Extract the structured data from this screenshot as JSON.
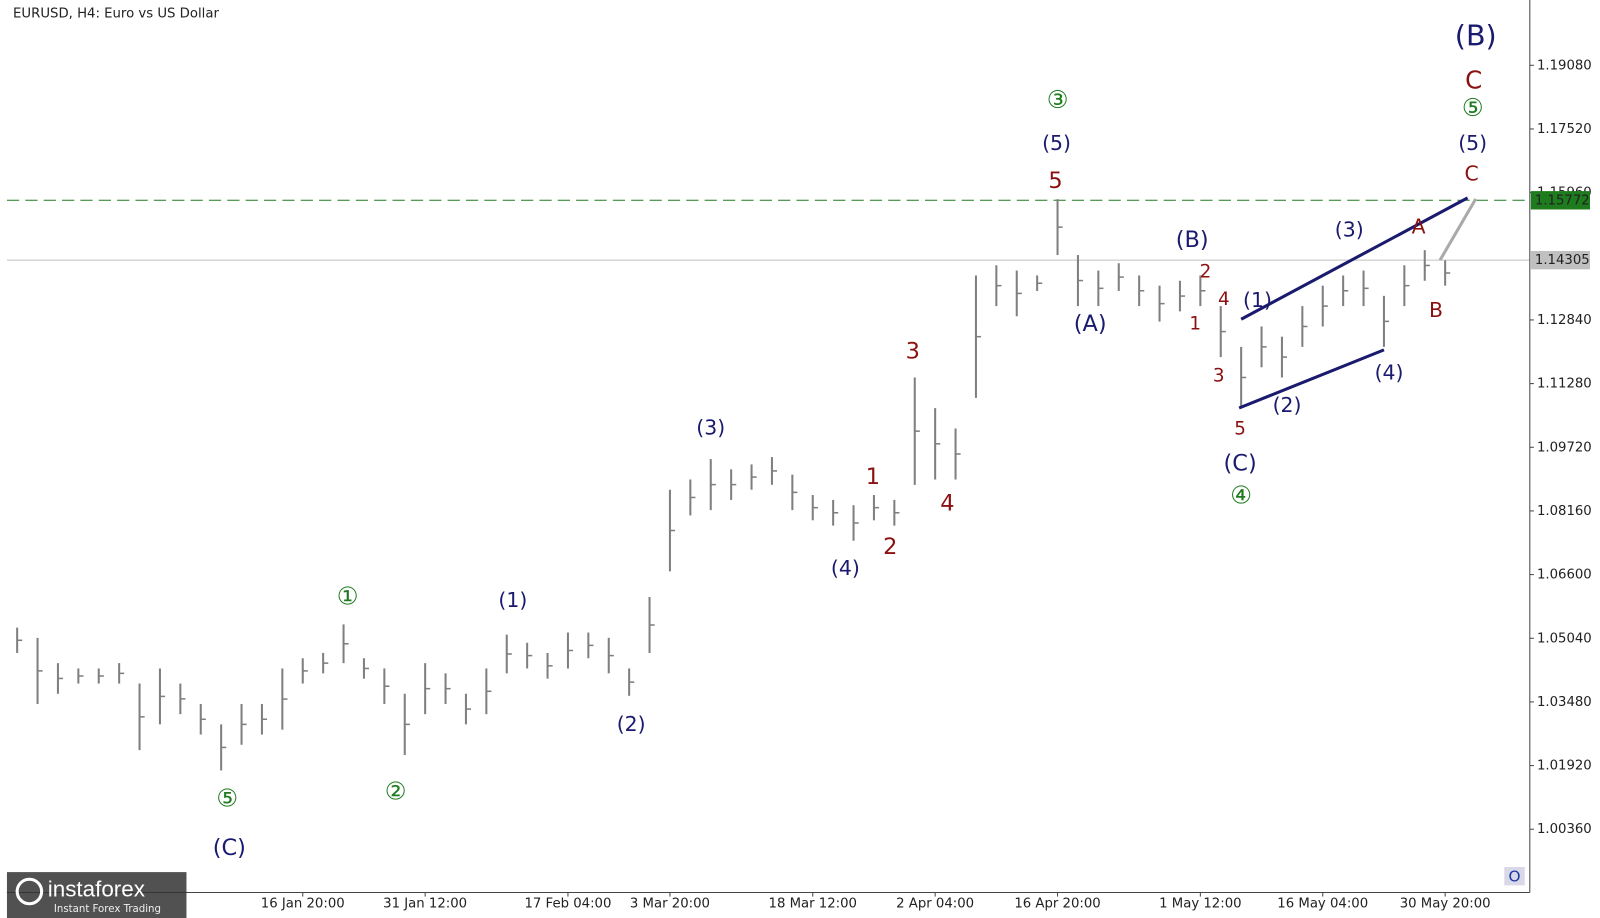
{
  "chart_data": {
    "type": "ohlc",
    "title": "EURUSD, H4:  Euro vs US Dollar",
    "color": "#7f7f7f",
    "categories": [
      null,
      null,
      null,
      null,
      null,
      null,
      null,
      null,
      null,
      null,
      null,
      null,
      null,
      null,
      "16 Jan 20:00",
      null,
      null,
      null,
      null,
      null,
      "31 Jan 12:00",
      null,
      null,
      null,
      null,
      null,
      null,
      "17 Feb 04:00",
      null,
      null,
      null,
      null,
      "3 Mar 20:00",
      null,
      null,
      null,
      null,
      null,
      null,
      "18 Mar 12:00",
      null,
      null,
      null,
      null,
      null,
      "2 Apr 04:00",
      null,
      null,
      null,
      null,
      null,
      "16 Apr 20:00",
      null,
      null,
      null,
      null,
      null,
      null,
      "1 May 12:00",
      null,
      null,
      null,
      null,
      null,
      "16 May 04:00",
      null,
      null,
      null,
      null,
      null,
      "30 May 20:00"
    ],
    "high": [
      1.053,
      1.0505,
      1.0443,
      1.043,
      1.043,
      1.0443,
      1.0393,
      1.043,
      1.0393,
      1.0343,
      1.0293,
      1.0343,
      1.0343,
      1.043,
      1.0455,
      1.0468,
      1.0538,
      1.0455,
      1.043,
      1.0368,
      1.0443,
      1.0418,
      1.0368,
      1.043,
      1.0513,
      1.0493,
      1.0468,
      1.0518,
      1.0518,
      1.0505,
      1.043,
      1.0605,
      1.0868,
      1.0893,
      1.0943,
      1.0918,
      1.093,
      1.0948,
      1.0905,
      1.0855,
      1.0843,
      1.083,
      1.0855,
      1.0843,
      1.1143,
      1.1068,
      1.1018,
      1.1393,
      1.1418,
      1.1405,
      1.1393,
      1.158,
      1.1443,
      1.1405,
      1.1423,
      1.1393,
      1.1368,
      1.138,
      1.1393,
      1.1318,
      1.1218,
      1.1268,
      1.1243,
      1.1318,
      1.1368,
      1.1393,
      1.1405,
      1.1343,
      1.1418,
      1.1455,
      1.143
    ],
    "low": [
      1.0468,
      1.0343,
      1.0368,
      1.0393,
      1.0393,
      1.0393,
      1.023,
      1.0293,
      1.0318,
      1.0268,
      1.018,
      1.0243,
      1.0268,
      1.028,
      1.0393,
      1.0418,
      1.0443,
      1.0405,
      1.0343,
      1.0218,
      1.0318,
      1.0343,
      1.0293,
      1.0318,
      1.0418,
      1.043,
      1.0405,
      1.043,
      1.0455,
      1.0418,
      1.0363,
      1.0468,
      1.0668,
      1.0805,
      1.0818,
      1.0843,
      1.0868,
      1.088,
      1.0818,
      1.0793,
      1.078,
      1.0743,
      1.0793,
      1.078,
      1.088,
      1.0893,
      1.0893,
      1.1093,
      1.1318,
      1.1293,
      1.1355,
      1.1443,
      1.1318,
      1.1318,
      1.1355,
      1.1318,
      1.128,
      1.1305,
      1.1318,
      1.1193,
      1.1068,
      1.1168,
      1.1143,
      1.1218,
      1.1268,
      1.1318,
      1.1318,
      1.1218,
      1.1318,
      1.138,
      1.1368
    ],
    "ylim": [
      0.9881,
      1.2068
    ],
    "yticks": [
      {
        "value": 1.1908,
        "label": "1.19080"
      },
      {
        "value": 1.1752,
        "label": "1.17520"
      },
      {
        "value": 1.1596,
        "label": "1.15960"
      },
      {
        "value": 1.1284,
        "label": "1.12840"
      },
      {
        "value": 1.1128,
        "label": "1.11280"
      },
      {
        "value": 1.0972,
        "label": "1.09720"
      },
      {
        "value": 1.0816,
        "label": "1.08160"
      },
      {
        "value": 1.066,
        "label": "1.06600"
      },
      {
        "value": 1.0504,
        "label": "1.05040"
      },
      {
        "value": 1.0348,
        "label": "1.03480"
      },
      {
        "value": 1.0192,
        "label": "1.01920"
      },
      {
        "value": 1.0036,
        "label": "1.00360"
      }
    ],
    "hlines": [
      {
        "value": 1.15772,
        "label": "1.15772",
        "color": "#1e7b1e"
      },
      {
        "value": 1.14305,
        "label": "1.14305",
        "color": "#c0c0c0"
      }
    ],
    "annotations": [
      {
        "text": "(B)",
        "color": "#1a1a6e"
      },
      {
        "text": "C",
        "color": "#8b1010"
      },
      {
        "text": "⑤",
        "color": "#1e7b1e"
      },
      {
        "text": "(5)",
        "color": "#1a1a6e"
      },
      {
        "text": "C",
        "color": "#8b1010"
      },
      {
        "text": "③",
        "color": "#1e7b1e"
      },
      {
        "text": "(5)",
        "color": "#1a1a6e"
      },
      {
        "text": "5",
        "color": "#8b1010"
      },
      {
        "text": "(B)",
        "color": "#1a1a6e"
      },
      {
        "text": "2",
        "color": "#8b1010"
      },
      {
        "text": "4",
        "color": "#8b1010"
      },
      {
        "text": "1",
        "color": "#8b1010"
      },
      {
        "text": "(1)",
        "color": "#1a1a6e"
      },
      {
        "text": "(A)",
        "color": "#1a1a6e"
      },
      {
        "text": "(3)",
        "color": "#1a1a6e"
      },
      {
        "text": "A",
        "color": "#8b1010"
      },
      {
        "text": "B",
        "color": "#8b1010"
      },
      {
        "text": "3",
        "color": "#8b1010"
      },
      {
        "text": "5",
        "color": "#8b1010"
      },
      {
        "text": "(2)",
        "color": "#1a1a6e"
      },
      {
        "text": "(4)",
        "color": "#1a1a6e"
      },
      {
        "text": "(C)",
        "color": "#1a1a6e"
      },
      {
        "text": "④",
        "color": "#1e7b1e"
      },
      {
        "text": "(3)",
        "color": "#1a1a6e"
      },
      {
        "text": "3",
        "color": "#8b1010"
      },
      {
        "text": "1",
        "color": "#8b1010"
      },
      {
        "text": "4",
        "color": "#8b1010"
      },
      {
        "text": "2",
        "color": "#8b1010"
      },
      {
        "text": "(4)",
        "color": "#1a1a6e"
      },
      {
        "text": "(1)",
        "color": "#1a1a6e"
      },
      {
        "text": "①",
        "color": "#1e7b1e"
      },
      {
        "text": "(2)",
        "color": "#1a1a6e"
      },
      {
        "text": "②",
        "color": "#1e7b1e"
      },
      {
        "text": "⑤",
        "color": "#1e7b1e"
      },
      {
        "text": "(C)",
        "color": "#1a1a6e"
      }
    ]
  },
  "logo": {
    "name": "instaforex",
    "tagline": "Instant Forex Trading"
  }
}
